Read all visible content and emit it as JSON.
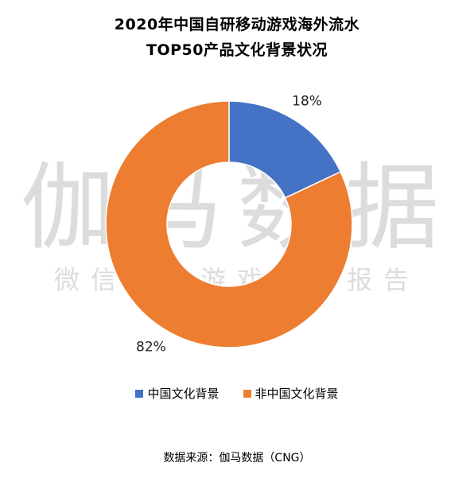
{
  "title_line1": "2020年中国自研移动游戏海外流水",
  "title_line2": "TOP50产品文化背景状况",
  "watermark": {
    "main": "伽马数据",
    "sub": "微信号：游戏产业报告"
  },
  "source": "数据来源：伽马数据（CNG）",
  "chart_data": {
    "type": "pie",
    "donut": true,
    "title": "2020年中国自研移动游戏海外流水TOP50产品文化背景状况",
    "legend_position": "bottom",
    "slices": [
      {
        "name": "中国文化背景",
        "value": 18,
        "label": "18%",
        "color": "#4472C4"
      },
      {
        "name": "非中国文化背景",
        "value": 82,
        "label": "82%",
        "color": "#ED7D31"
      }
    ]
  }
}
